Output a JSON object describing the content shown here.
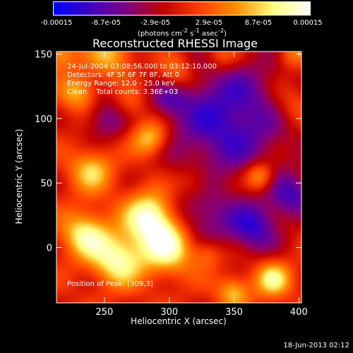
{
  "colorbar": {
    "ticks": [
      "-0.00015",
      "-8.7e-05",
      "-2.9e-05",
      "2.9e-05",
      "8.7e-05",
      "0.00015"
    ],
    "unit_html": "(photons cm<sup>-2</sup> s<sup>-1</sup> asec<sup>-2</sup>)",
    "colors": [
      "#0000ff",
      "#4000c0",
      "#800080",
      "#c00000",
      "#ff4000",
      "#ff9000",
      "#ffff80",
      "#ffffff"
    ]
  },
  "chart_data": {
    "type": "heatmap",
    "title": "Reconstructed RHESSI Image",
    "xlabel": "Heliocentric X (arcsec)",
    "ylabel": "Heliocentric Y (arcsec)",
    "xlim": [
      213,
      402
    ],
    "ylim": [
      -43,
      152
    ],
    "xticks": [
      250,
      300,
      350,
      400
    ],
    "yticks": [
      0,
      50,
      100,
      150
    ],
    "color_range": [
      -0.00015,
      0.00015
    ],
    "annotations": {
      "time": "24-Jul-2004 03:08:56.000 to 03:12:10.000",
      "detectors": "Detectors: 4F 5F 6F 7F 8F, Att 0",
      "energy": "Energy Range: 12.0 - 25.0 keV",
      "clean": "Clean    Total counts: 3.36E+03",
      "peak": "Position of Peak: [309,3]"
    },
    "peak_position": [
      309,
      3
    ]
  },
  "footer": {
    "timestamp": "18-Jun-2013 02:12"
  }
}
